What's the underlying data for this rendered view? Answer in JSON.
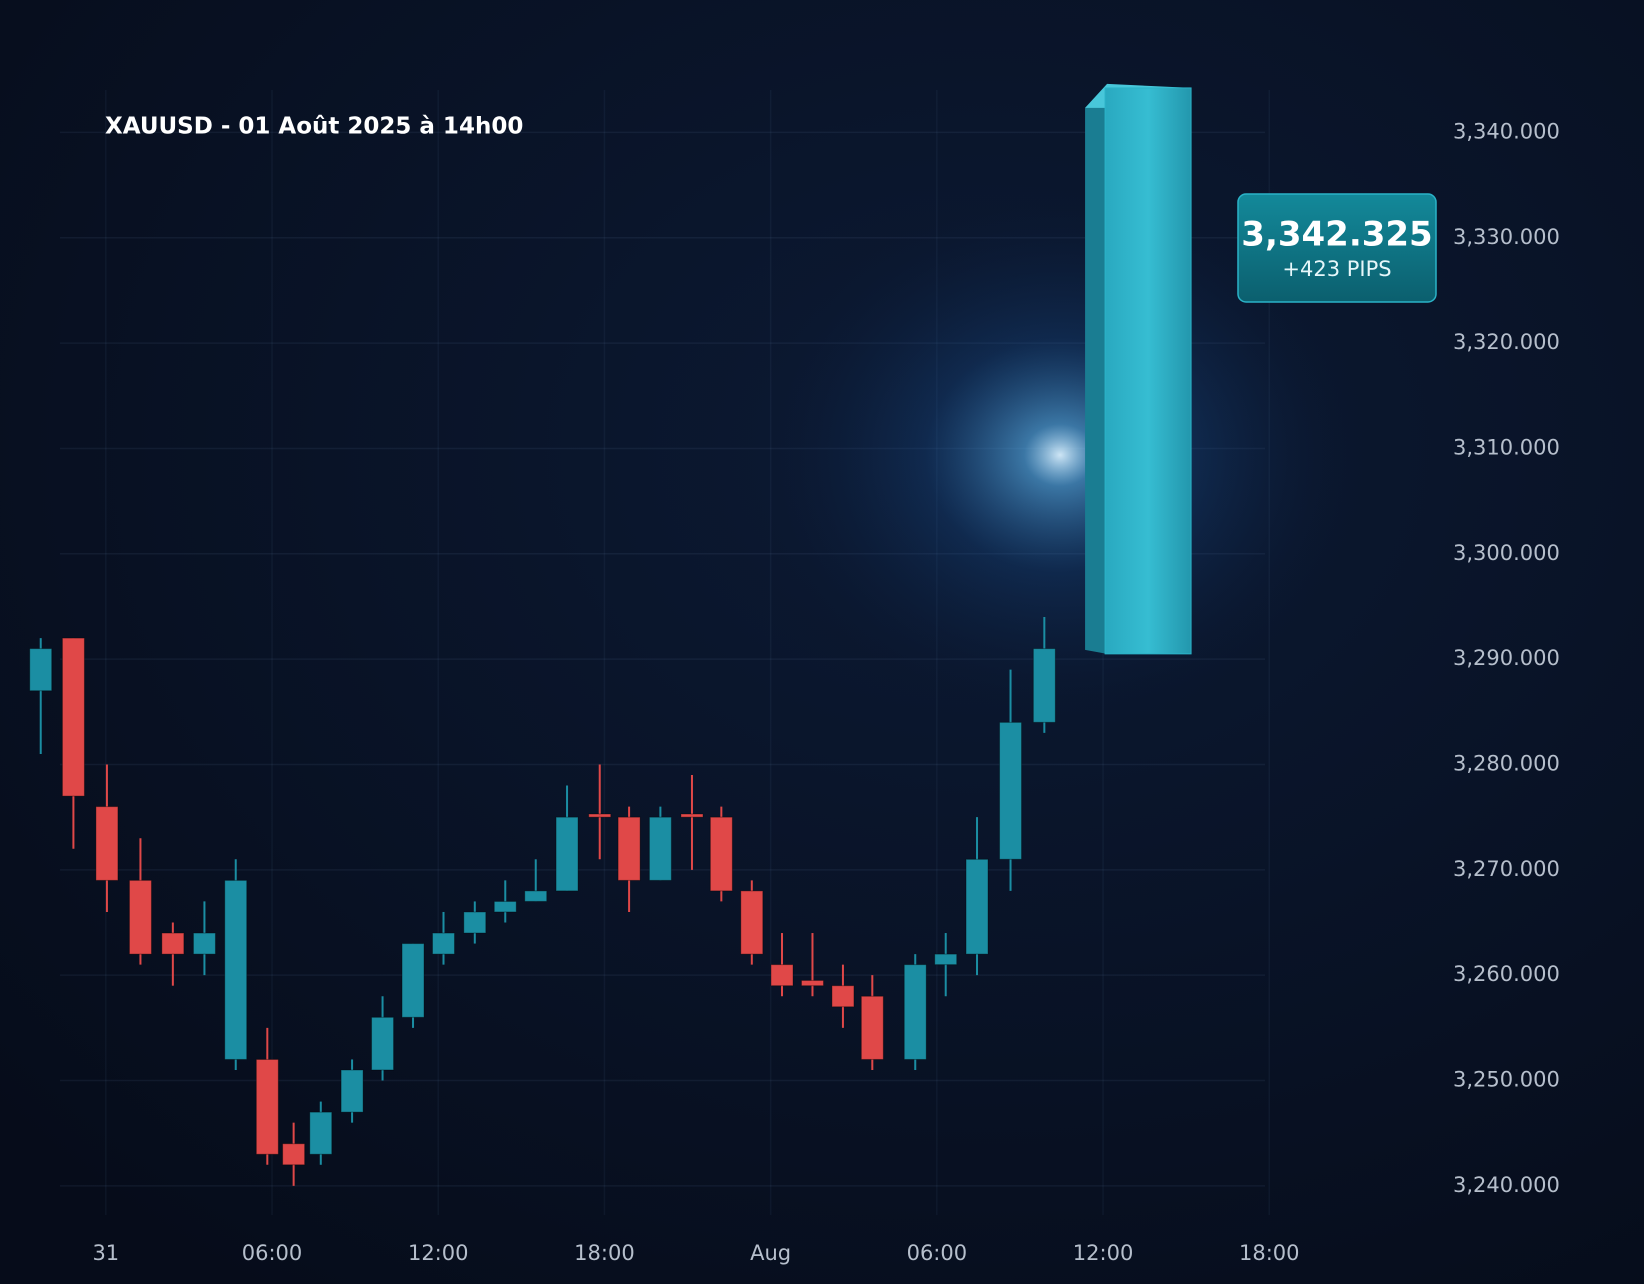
{
  "chart_data": {
    "type": "candlestick",
    "title": "XAUUSD - 01 Août 2025 à 14h00",
    "x": [
      -2.35,
      -1.17,
      0.04,
      1.25,
      2.42,
      3.56,
      4.69,
      5.83,
      6.78,
      7.76,
      8.89,
      9.99,
      11.09,
      12.19,
      13.32,
      14.42,
      15.52,
      16.65,
      17.83,
      18.89,
      20.02,
      21.16,
      22.22,
      23.32,
      24.41,
      25.51,
      26.61,
      27.67,
      29.22,
      30.32,
      31.45,
      32.66,
      33.88
    ],
    "open": [
      3287,
      3292,
      3276,
      3269,
      3264,
      3262,
      3252,
      3252,
      3244,
      3243,
      3247,
      3251,
      3256,
      3262,
      3264,
      3266,
      3267,
      3268,
      3275.3,
      3275,
      3269,
      3275.3,
      3275,
      3268,
      3261,
      3259.5,
      3259,
      3258,
      3252,
      3261,
      3262,
      3271,
      3284
    ],
    "high": [
      3292,
      3292,
      3280,
      3273,
      3265,
      3267,
      3271,
      3255,
      3246,
      3248,
      3252,
      3258,
      3263,
      3266,
      3267,
      3269,
      3271,
      3278,
      3280,
      3276,
      3276,
      3279,
      3276,
      3269,
      3264,
      3264,
      3261,
      3260,
      3262,
      3264,
      3275,
      3289,
      3294
    ],
    "low": [
      3281,
      3272,
      3266,
      3261,
      3259,
      3260,
      3251,
      3242,
      3240,
      3242,
      3246,
      3250,
      3255,
      3261,
      3263,
      3265,
      3267,
      3268,
      3271,
      3266,
      3269,
      3270,
      3267,
      3261,
      3258,
      3258,
      3255,
      3251,
      3251,
      3258,
      3260,
      3268,
      3283
    ],
    "close": [
      3291,
      3277,
      3269,
      3262,
      3262,
      3264,
      3269,
      3243,
      3242,
      3247,
      3251,
      3256,
      3263,
      3264,
      3266,
      3267,
      3268,
      3275,
      3275,
      3269,
      3275,
      3275,
      3268,
      3262,
      3259,
      3259,
      3257,
      3252,
      3261,
      3262,
      3271,
      3284,
      3291
    ],
    "up_color": "#1b8ea3",
    "down_color": "#e04848",
    "ylim": [
      3236,
      3352
    ],
    "yticks": [
      {
        "value": 3240,
        "label": "3,240.000"
      },
      {
        "value": 3250,
        "label": "3,250.000"
      },
      {
        "value": 3260,
        "label": "3,260.000"
      },
      {
        "value": 3270,
        "label": "3,270.000"
      },
      {
        "value": 3280,
        "label": "3,280.000"
      },
      {
        "value": 3290,
        "label": "3,290.000"
      },
      {
        "value": 3300,
        "label": "3,300.000"
      },
      {
        "value": 3310,
        "label": "3,310.000"
      },
      {
        "value": 3320,
        "label": "3,320.000"
      },
      {
        "value": 3330,
        "label": "3,330.000"
      },
      {
        "value": 3340,
        "label": "3,340.000"
      }
    ],
    "xlim": [
      -3.82,
      46.9
    ],
    "xticks": [
      {
        "value": 0,
        "label": "31"
      },
      {
        "value": 6,
        "label": "06:00"
      },
      {
        "value": 12,
        "label": "12:00"
      },
      {
        "value": 18,
        "label": "18:00"
      },
      {
        "value": 24,
        "label": "Aug"
      },
      {
        "value": 30,
        "label": "06:00"
      },
      {
        "value": 36,
        "label": "12:00"
      },
      {
        "value": 42,
        "label": "18:00"
      }
    ],
    "grid": true,
    "annotation": {
      "value": 3342.325,
      "label": "3,342.325",
      "text": "+423 PIPS",
      "x": 37.3,
      "from": 3290.5,
      "color": "#2bb3c8"
    }
  }
}
